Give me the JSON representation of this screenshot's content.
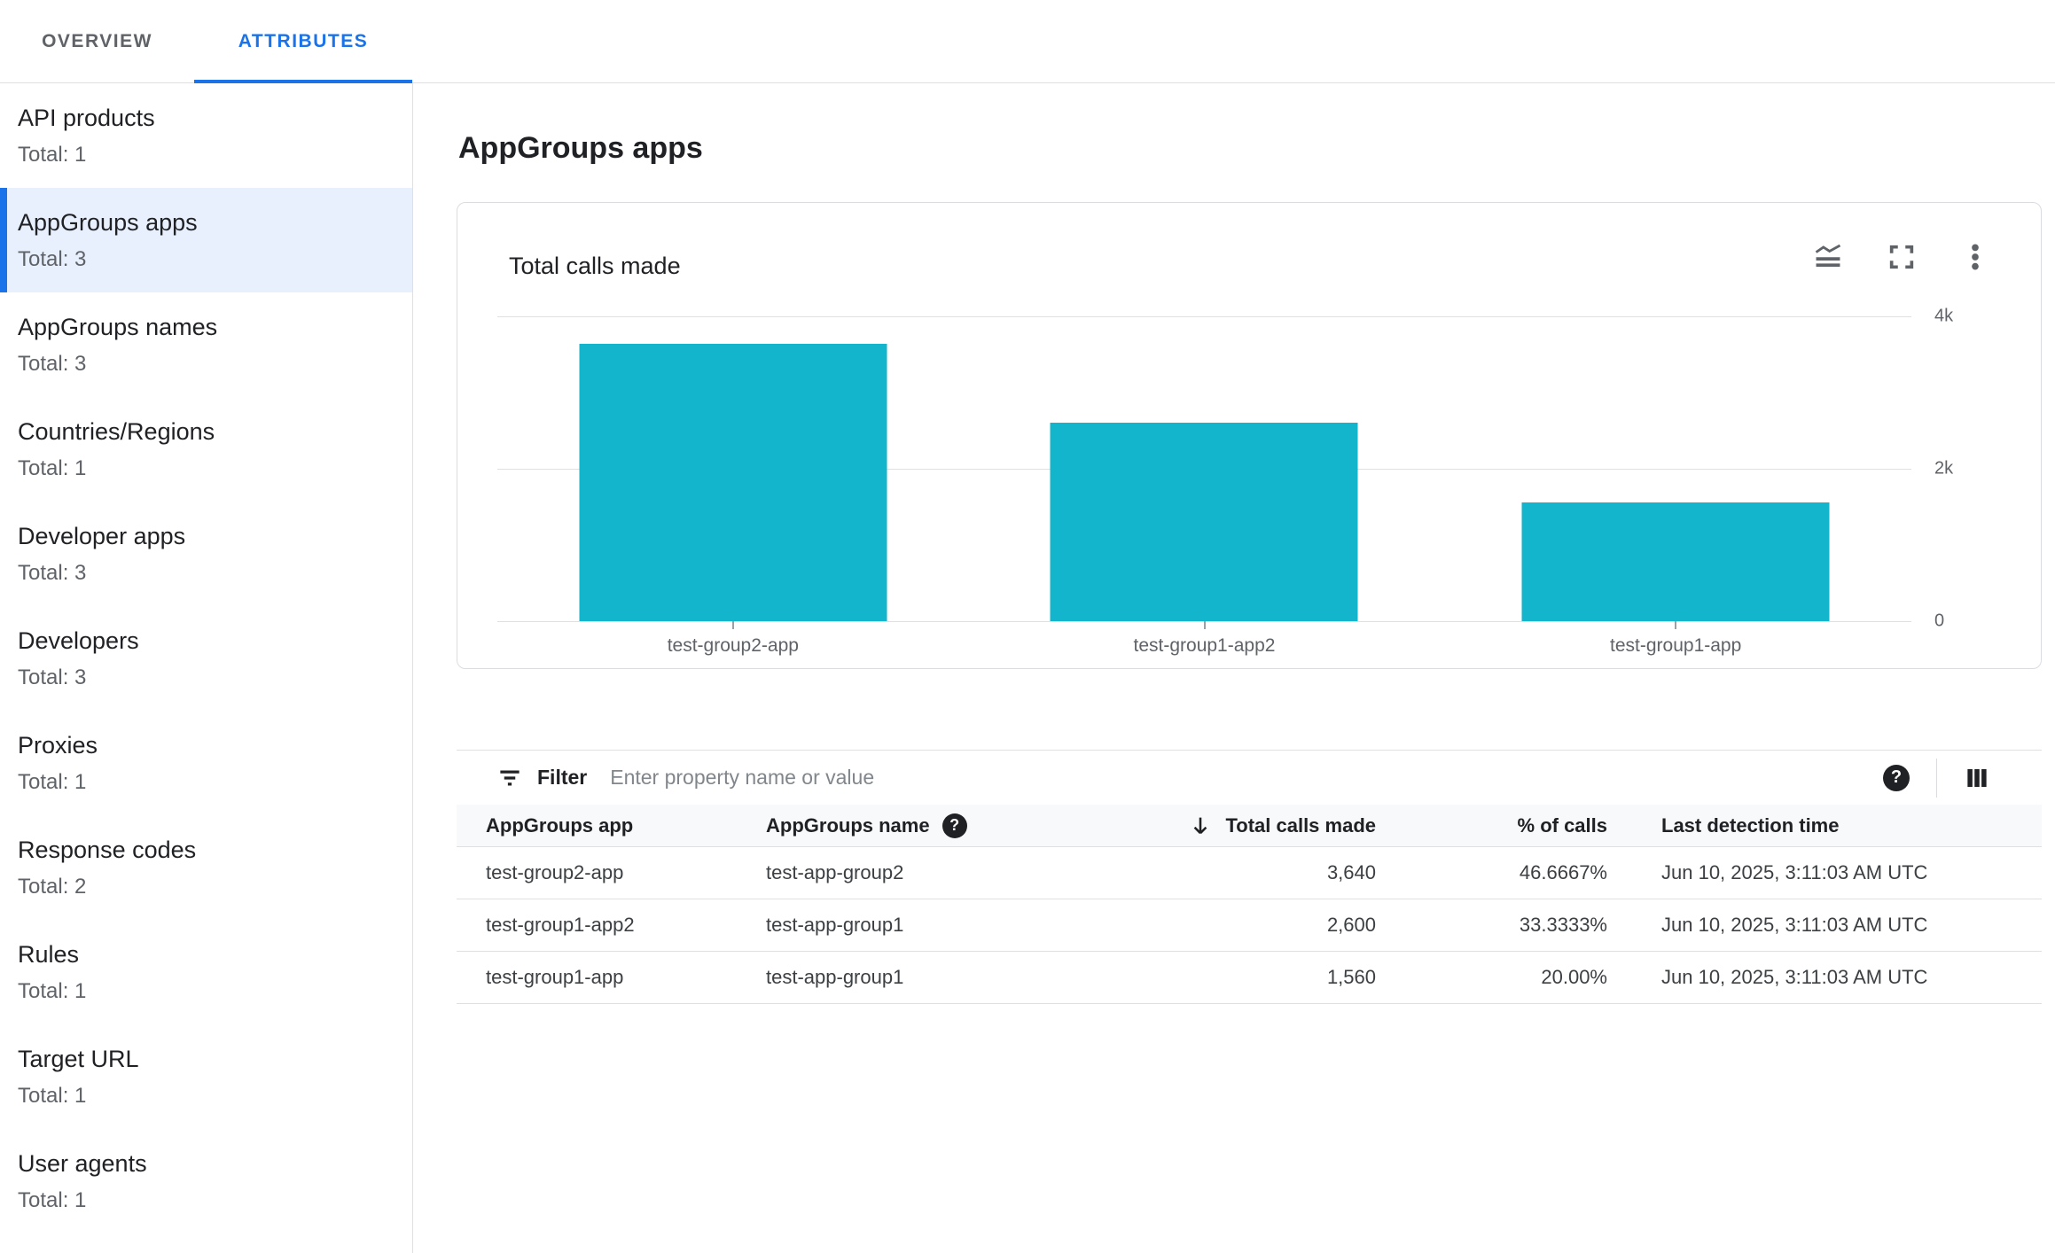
{
  "tabs": {
    "overview": "OVERVIEW",
    "attributes": "ATTRIBUTES"
  },
  "sidebar": {
    "items": [
      {
        "label": "API products",
        "total": "Total: 1",
        "selected": false
      },
      {
        "label": "AppGroups apps",
        "total": "Total: 3",
        "selected": true
      },
      {
        "label": "AppGroups names",
        "total": "Total: 3",
        "selected": false
      },
      {
        "label": "Countries/Regions",
        "total": "Total: 1",
        "selected": false
      },
      {
        "label": "Developer apps",
        "total": "Total: 3",
        "selected": false
      },
      {
        "label": "Developers",
        "total": "Total: 3",
        "selected": false
      },
      {
        "label": "Proxies",
        "total": "Total: 1",
        "selected": false
      },
      {
        "label": "Response codes",
        "total": "Total: 2",
        "selected": false
      },
      {
        "label": "Rules",
        "total": "Total: 1",
        "selected": false
      },
      {
        "label": "Target URL",
        "total": "Total: 1",
        "selected": false
      },
      {
        "label": "User agents",
        "total": "Total: 1",
        "selected": false
      }
    ]
  },
  "main": {
    "title": "AppGroups apps"
  },
  "chart_card": {
    "title": "Total calls made",
    "icons": [
      "chart-type-icon",
      "fullscreen-icon",
      "more-vert-icon"
    ]
  },
  "chart_data": {
    "type": "bar",
    "title": "Total calls made",
    "categories": [
      "test-group2-app",
      "test-group1-app2",
      "test-group1-app"
    ],
    "values": [
      3640,
      2600,
      1560
    ],
    "ylim": [
      0,
      4000
    ],
    "yticks": [
      {
        "value": 4000,
        "label": "4k"
      },
      {
        "value": 2000,
        "label": "2k"
      },
      {
        "value": 0,
        "label": "0"
      }
    ],
    "bar_color": "#12b5cb",
    "grid": true,
    "ytick_position": "right",
    "legend": "none"
  },
  "filter": {
    "label": "Filter",
    "placeholder": "Enter property name or value"
  },
  "table": {
    "columns": [
      {
        "label": "AppGroups app"
      },
      {
        "label": "AppGroups name",
        "has_help": true
      },
      {
        "label": "Total calls made",
        "sort": "desc"
      },
      {
        "label": "% of calls"
      },
      {
        "label": "Last detection time"
      }
    ],
    "rows": [
      [
        "test-group2-app",
        "test-app-group2",
        "3,640",
        "46.6667%",
        "Jun 10, 2025, 3:11:03 AM UTC"
      ],
      [
        "test-group1-app2",
        "test-app-group1",
        "2,600",
        "33.3333%",
        "Jun 10, 2025, 3:11:03 AM UTC"
      ],
      [
        "test-group1-app",
        "test-app-group1",
        "1,560",
        "20.00%",
        "Jun 10, 2025, 3:11:03 AM UTC"
      ]
    ]
  },
  "colors": {
    "accent": "#1a73e8",
    "bar": "#12b5cb",
    "selected_bg": "#e8f0fe",
    "border": "#e0e0e0",
    "header_bg": "#f8f9fa",
    "text": "#202124",
    "muted": "#5f6368"
  }
}
